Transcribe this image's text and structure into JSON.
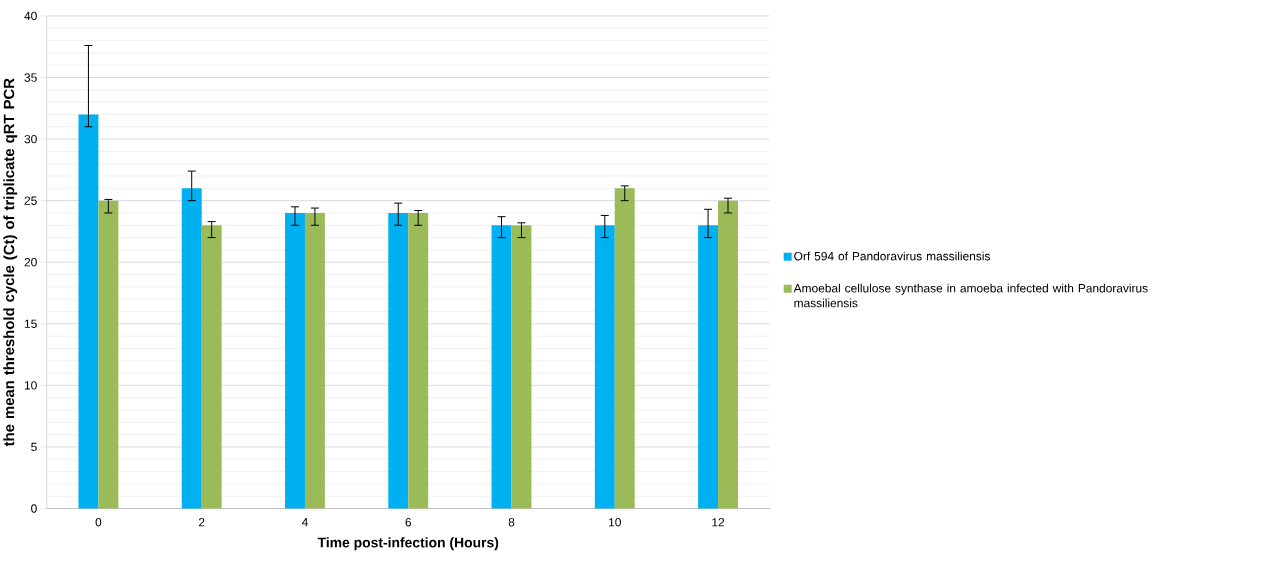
{
  "chart_data": {
    "type": "bar",
    "xlabel": "Time post-infection (Hours)",
    "ylabel": "the mean threshold cycle (Ct) of triplicate qRT PCR",
    "categories": [
      "0",
      "2",
      "4",
      "6",
      "8",
      "10",
      "12"
    ],
    "series": [
      {
        "name": "Orf 594 of Pandoravirus massiliensis",
        "color": "#00b0f0",
        "values": [
          32,
          26,
          24,
          24,
          23,
          23,
          23
        ],
        "errors": [
          [
            31,
            37.6
          ],
          [
            25,
            27.4
          ],
          [
            23,
            24.5
          ],
          [
            23,
            24.8
          ],
          [
            22,
            23.7
          ],
          [
            22,
            23.8
          ],
          [
            22,
            24.3
          ]
        ]
      },
      {
        "name": "Amoebal cellulose synthase in amoeba infected with Pandoravirus massiliensis",
        "color": "#9bbb59",
        "values": [
          25,
          23,
          24,
          24,
          23,
          26,
          25
        ],
        "errors": [
          [
            24,
            25.1
          ],
          [
            22,
            23.3
          ],
          [
            23,
            24.4
          ],
          [
            23,
            24.2
          ],
          [
            22,
            23.2
          ],
          [
            25,
            26.2
          ],
          [
            24,
            25.2
          ]
        ]
      }
    ],
    "ylim": [
      0,
      40
    ],
    "yticks": [
      0,
      5,
      10,
      15,
      20,
      25,
      30,
      35,
      40
    ],
    "grid": "y",
    "legend": "right"
  }
}
